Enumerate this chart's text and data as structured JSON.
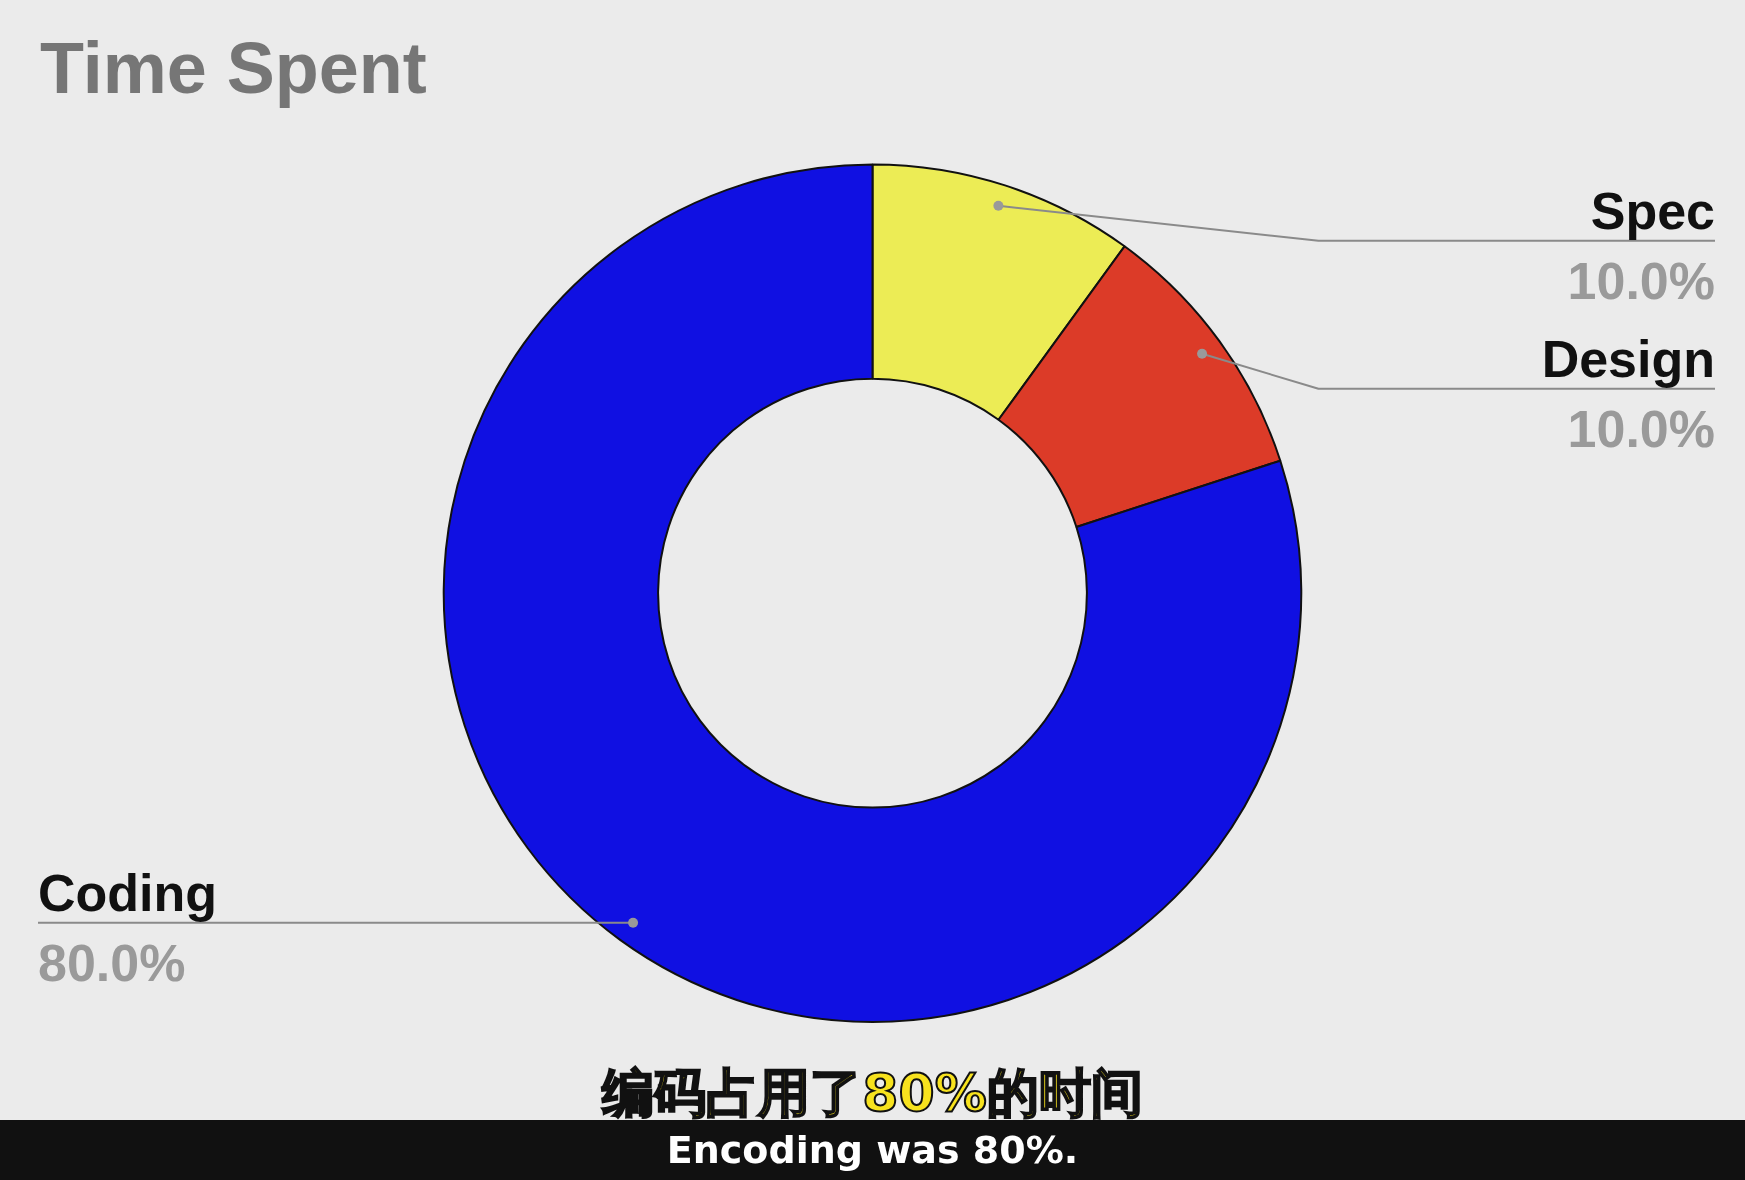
{
  "chart_data": {
    "type": "donut",
    "title": "Time Spent",
    "categories": [
      "Spec",
      "Design",
      "Coding"
    ],
    "values": [
      10,
      10,
      80
    ],
    "colors": [
      "#ecec55",
      "#dc3b28",
      "#1010e2"
    ],
    "value_labels": [
      "10.0%",
      "10.0%",
      "80.0%"
    ],
    "legend": false,
    "annotations": [
      "编码占用了80%的时间",
      "Encoding was 80%."
    ]
  }
}
